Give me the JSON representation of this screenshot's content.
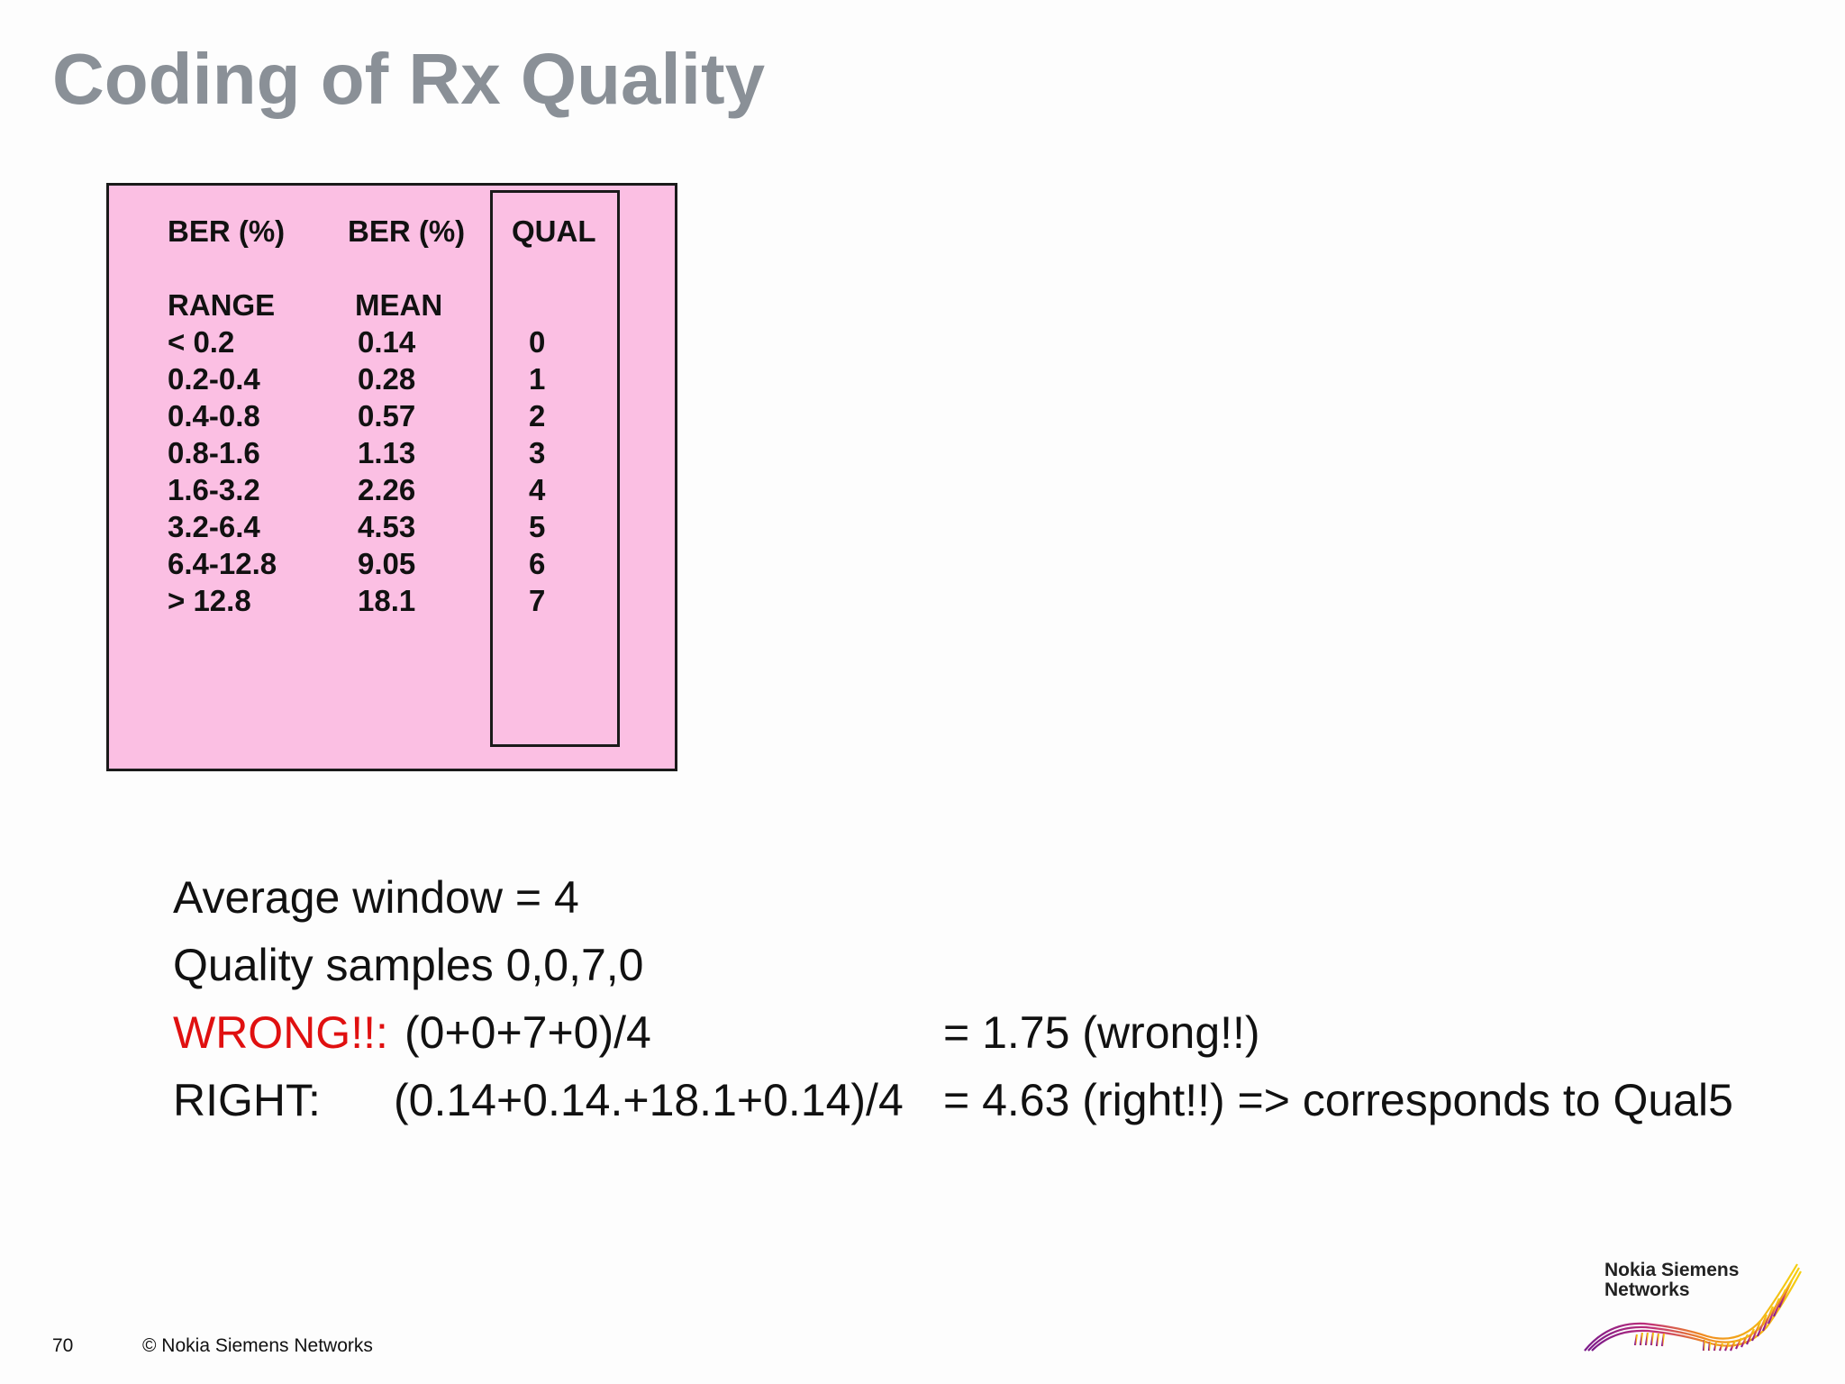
{
  "title": "Coding of Rx Quality",
  "table": {
    "header_row1": [
      "BER (%)",
      "BER (%)",
      "QUAL"
    ],
    "header_row2": [
      "RANGE",
      "MEAN",
      ""
    ],
    "rows": [
      {
        "range": "< 0.2",
        "mean": "0.14",
        "qual": "0"
      },
      {
        "range": "0.2-0.4",
        "mean": "0.28",
        "qual": "1"
      },
      {
        "range": "0.4-0.8",
        "mean": "0.57",
        "qual": "2"
      },
      {
        "range": "0.8-1.6",
        "mean": "1.13",
        "qual": "3"
      },
      {
        "range": "1.6-3.2",
        "mean": "2.26",
        "qual": "4"
      },
      {
        "range": "3.2-6.4",
        "mean": "4.53",
        "qual": "5"
      },
      {
        "range": "6.4-12.8",
        "mean": "9.05",
        "qual": "6"
      },
      {
        "range": "> 12.8",
        "mean": "18.1",
        "qual": "7"
      }
    ],
    "background_color": "#fbbfe3"
  },
  "notes": {
    "average_window": "Average window = 4",
    "quality_samples": "Quality samples 0,0,7,0",
    "wrong_label": "WRONG!!:",
    "wrong_formula": "(0+0+7+0)/4",
    "wrong_result": "= 1.75 (wrong!!)",
    "right_label": "RIGHT:",
    "right_formula": "(0.14+0.14.+18.1+0.14)/4",
    "right_result": "= 4.63 (right!!) => corresponds to Qual5"
  },
  "footer": {
    "page_number": "70",
    "copyright": "© Nokia Siemens Networks"
  },
  "logo": {
    "line1": "Nokia Siemens",
    "line2": "Networks"
  },
  "colors": {
    "title": "#8a9097",
    "wrong": "#e01010",
    "table_bg": "#fbbfe3"
  }
}
